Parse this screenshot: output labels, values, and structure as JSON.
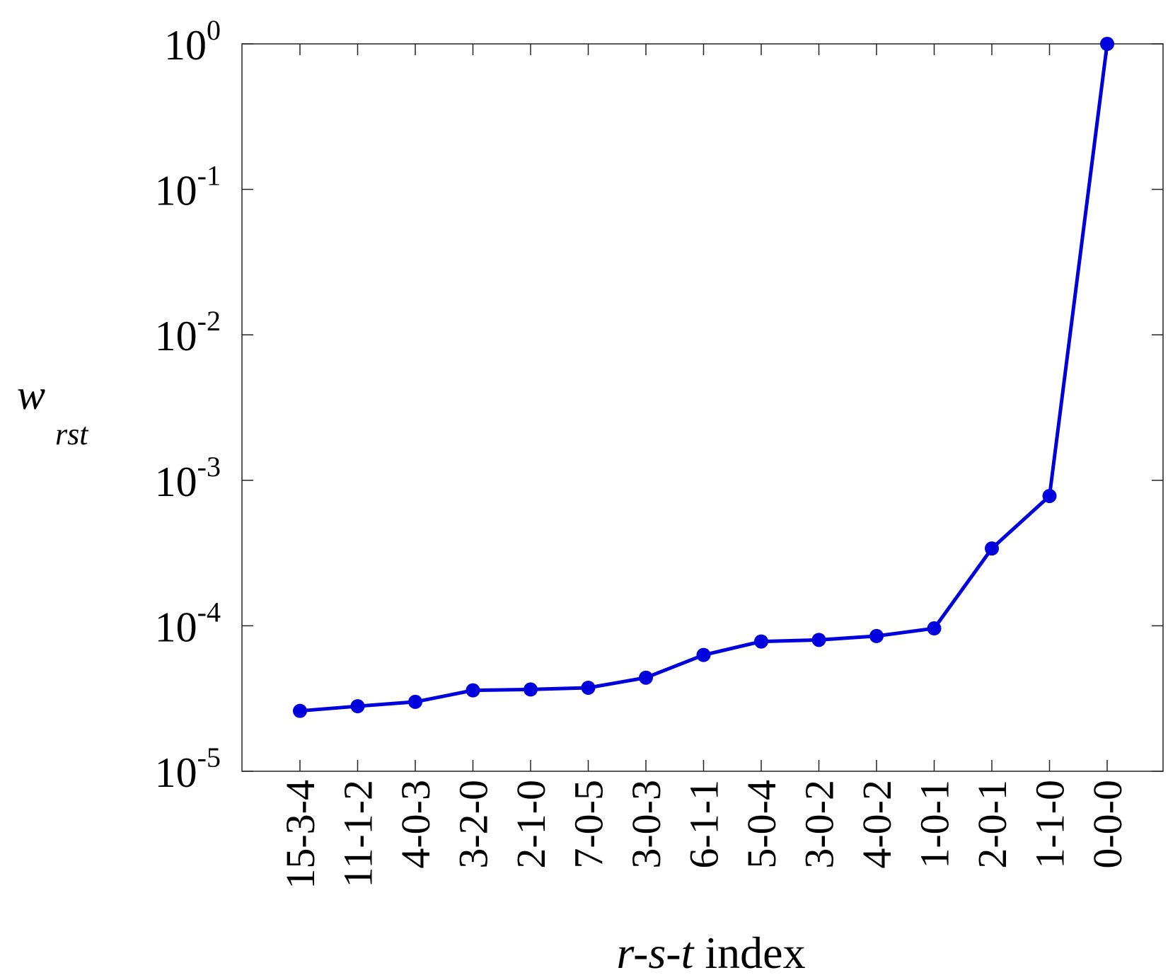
{
  "chart_data": {
    "type": "line",
    "xlabel_italic": "r-s-t",
    "xlabel_rest": " index",
    "ylabel_main": "w",
    "ylabel_sub": "rst",
    "yscale": "log",
    "ylim": [
      1e-05,
      1
    ],
    "ytick_base": "10",
    "yticks": [
      {
        "value": 1,
        "exp": "0"
      },
      {
        "value": 0.1,
        "exp": "-1"
      },
      {
        "value": 0.01,
        "exp": "-2"
      },
      {
        "value": 0.001,
        "exp": "-3"
      },
      {
        "value": 0.0001,
        "exp": "-4"
      },
      {
        "value": 1e-05,
        "exp": "-5"
      }
    ],
    "categories": [
      "15-3-4",
      "11-1-2",
      "4-0-3",
      "3-2-0",
      "2-1-0",
      "7-0-5",
      "3-0-3",
      "6-1-1",
      "5-0-4",
      "3-0-2",
      "4-0-2",
      "1-0-1",
      "2-0-1",
      "1-1-0",
      "0-0-0"
    ],
    "series": [
      {
        "color": "#0000dd",
        "values": [
          2.6e-05,
          2.8e-05,
          3e-05,
          3.6e-05,
          3.65e-05,
          3.75e-05,
          4.4e-05,
          6.3e-05,
          7.8e-05,
          8e-05,
          8.5e-05,
          9.6e-05,
          0.00034,
          0.00078,
          1.0
        ]
      }
    ],
    "grid": false,
    "legend": "none"
  }
}
